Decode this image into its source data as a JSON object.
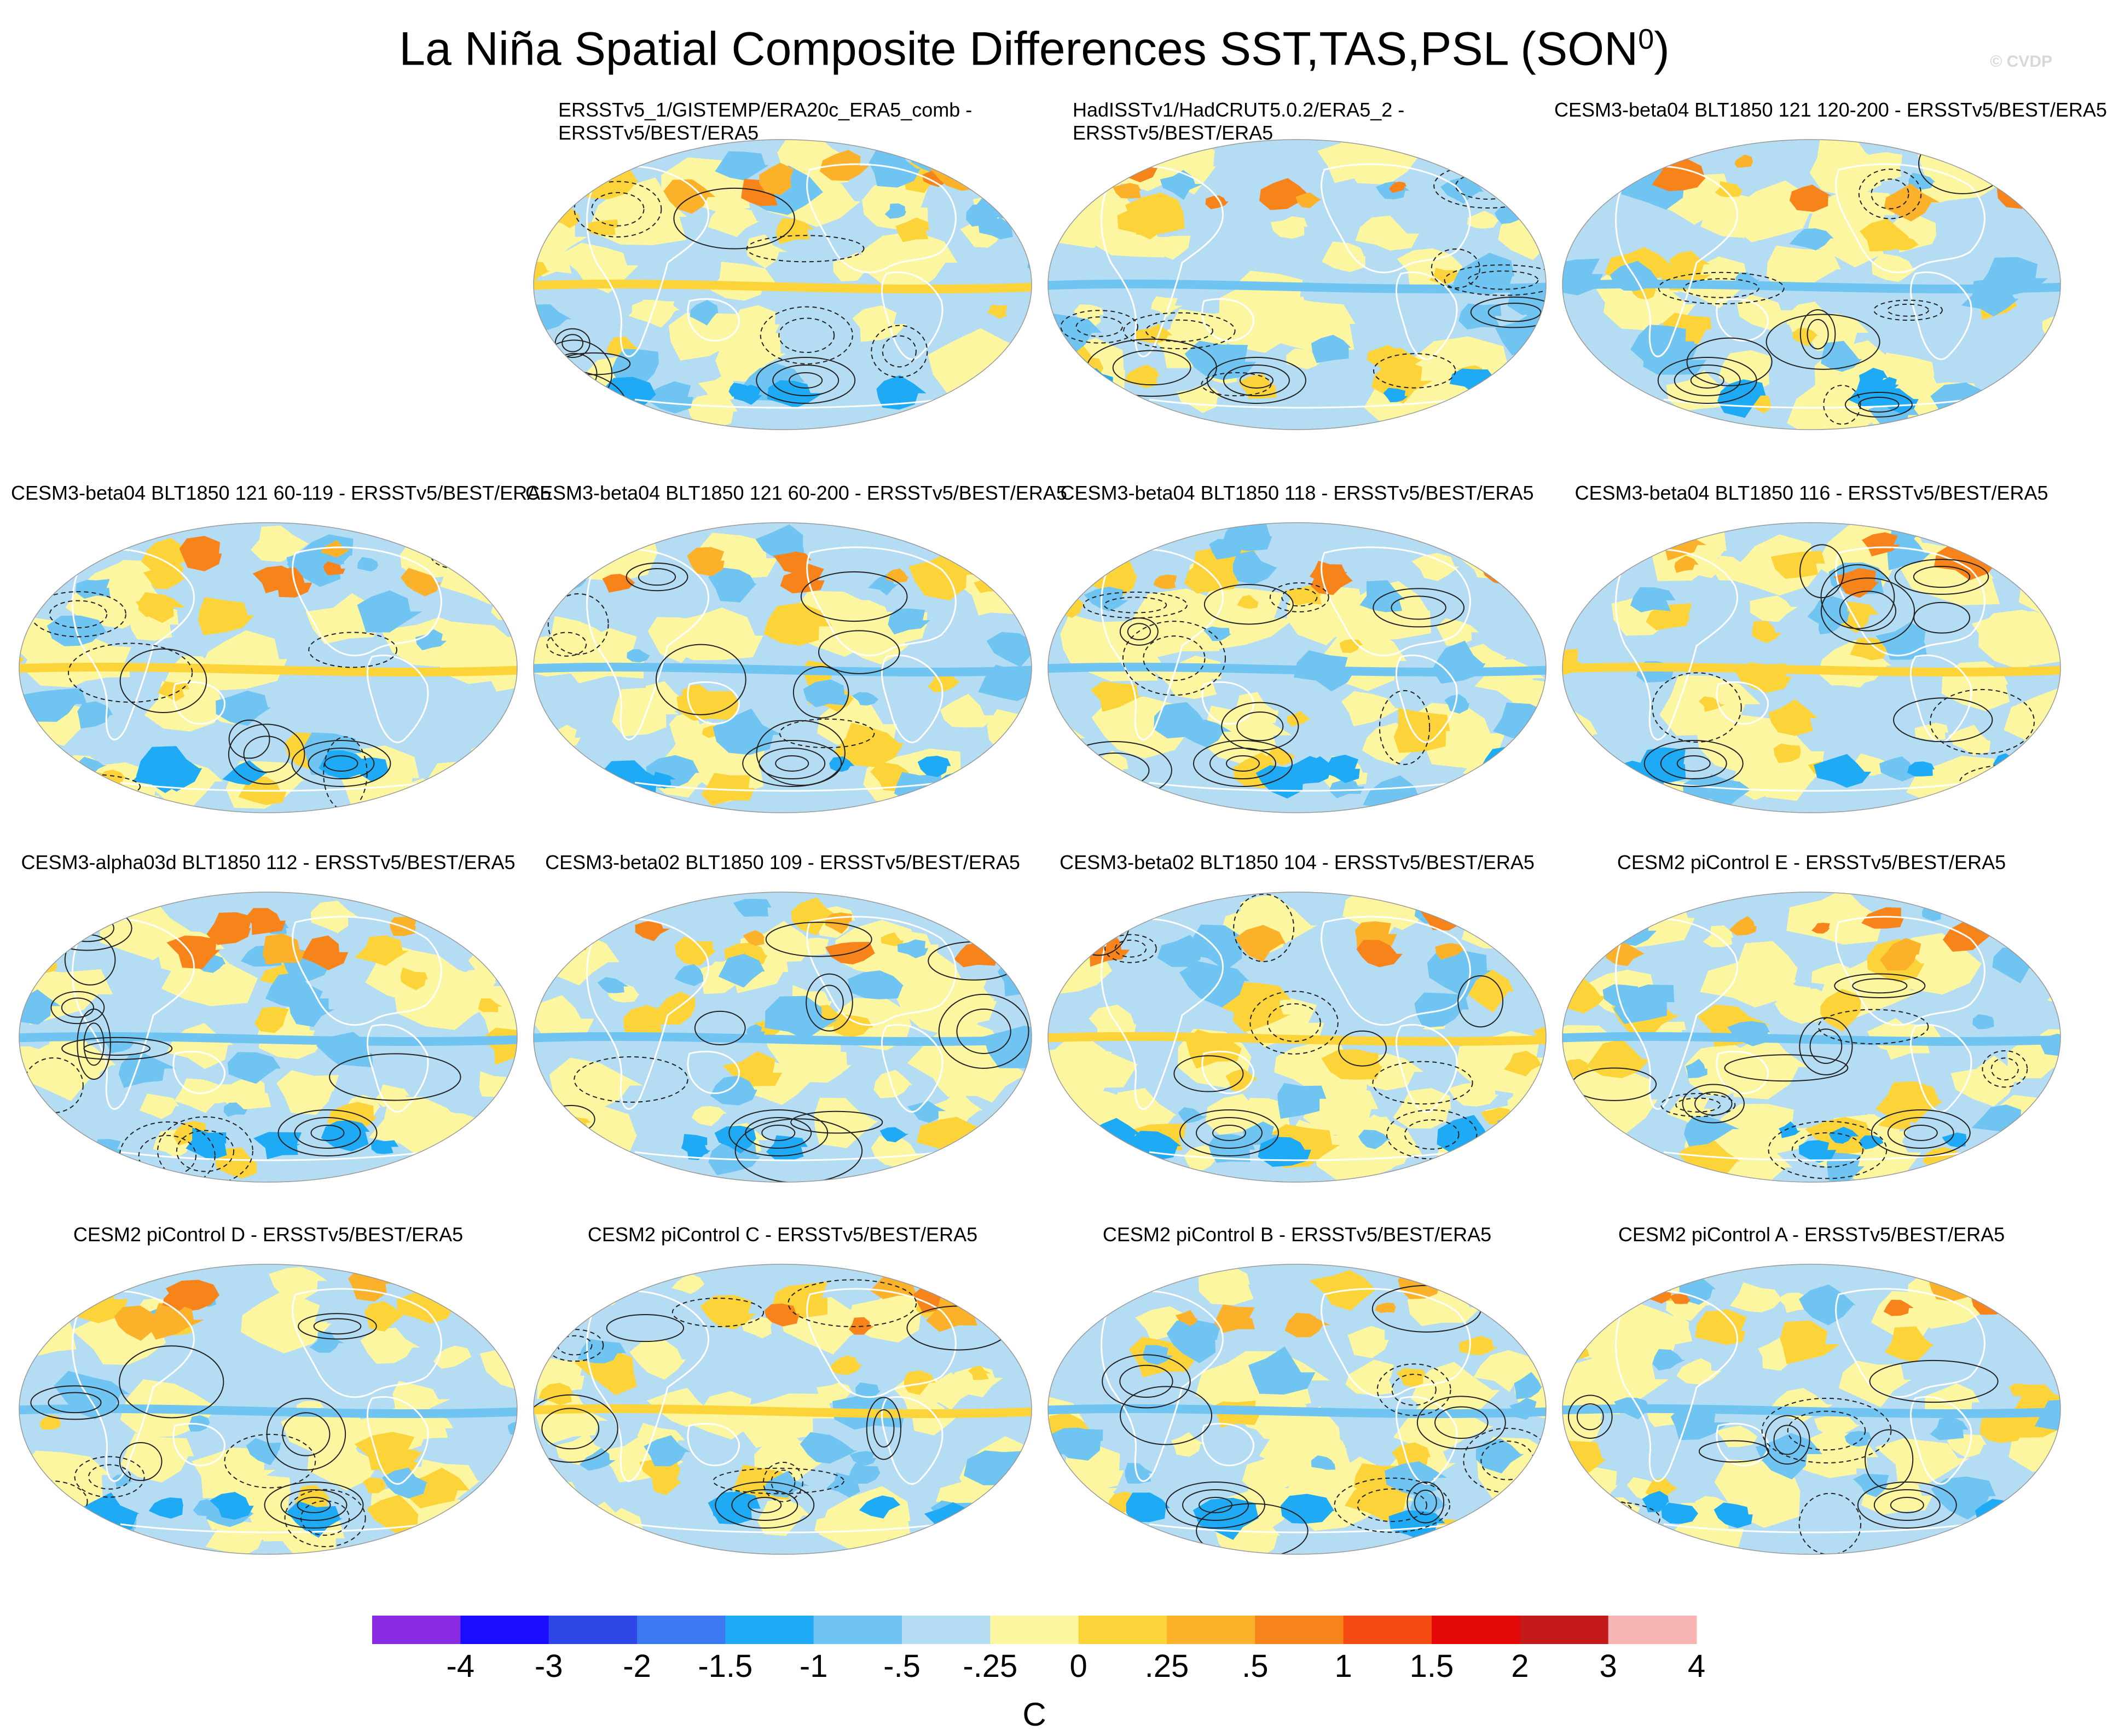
{
  "figure": {
    "title": "La Niña Spatial Composite Differences SST,TAS,PSL (SON",
    "title_sup": "0",
    "title_close": ")",
    "watermark": "© CVDP",
    "units": "C"
  },
  "chart_data": {
    "type": "map-grid",
    "projection": "Robinson (global, Pacific-centered)",
    "variables": [
      "SST",
      "TAS",
      "PSL"
    ],
    "season": "SON",
    "shading": "SST/TAS composite difference (C)",
    "contours": "PSL composite difference (solid positive, dashed negative)",
    "panels": [
      {
        "title": "ERSSTv5_1/GISTEMP/ERA20c_ERA5_comb - ERSSTv5/BEST/ERA5",
        "line1": "ERSSTv5_1/GISTEMP/ERA20c_ERA5_comb -",
        "line2": "ERSSTv5/BEST/ERA5"
      },
      {
        "title": "HadISSTv1/HadCRUT5.0.2/ERA5_2 - ERSSTv5/BEST/ERA5",
        "line1": "HadISSTv1/HadCRUT5.0.2/ERA5_2 -",
        "line2": "ERSSTv5/BEST/ERA5"
      },
      {
        "title": "CESM3-beta04 BLT1850 121 120-200 - ERSSTv5/BEST/ERA5"
      },
      {
        "title": "CESM3-beta04 BLT1850 121 60-119 - ERSSTv5/BEST/ERA5"
      },
      {
        "title": "CESM3-beta04 BLT1850 121 60-200 - ERSSTv5/BEST/ERA5"
      },
      {
        "title": "CESM3-beta04 BLT1850 118 - ERSSTv5/BEST/ERA5"
      },
      {
        "title": "CESM3-beta04 BLT1850 116 - ERSSTv5/BEST/ERA5"
      },
      {
        "title": "CESM3-alpha03d BLT1850 112 - ERSSTv5/BEST/ERA5"
      },
      {
        "title": "CESM3-beta02 BLT1850 109 - ERSSTv5/BEST/ERA5"
      },
      {
        "title": "CESM3-beta02 BLT1850 104 - ERSSTv5/BEST/ERA5"
      },
      {
        "title": "CESM2 piControl E - ERSSTv5/BEST/ERA5"
      },
      {
        "title": "CESM2 piControl D - ERSSTv5/BEST/ERA5"
      },
      {
        "title": "CESM2 piControl C - ERSSTv5/BEST/ERA5"
      },
      {
        "title": "CESM2 piControl B - ERSSTv5/BEST/ERA5"
      },
      {
        "title": "CESM2 piControl A - ERSSTv5/BEST/ERA5"
      }
    ],
    "colorbar": {
      "labels": [
        "-4",
        "-3",
        "-2",
        "-1.5",
        "-1",
        "-.5",
        "-.25",
        "0",
        ".25",
        ".5",
        "1",
        "1.5",
        "2",
        "3",
        "4"
      ],
      "levels": [
        -4,
        -3,
        -2,
        -1.5,
        -1,
        -0.5,
        -0.25,
        0,
        0.25,
        0.5,
        1,
        1.5,
        2,
        3,
        4
      ],
      "colors": [
        "#8a2be2",
        "#1a0dff",
        "#2f46e6",
        "#3c79f0",
        "#1faaf5",
        "#70c4f2",
        "#b4dcf2",
        "#fdf6a0",
        "#fcd43a",
        "#fbb22a",
        "#f7841a",
        "#f44a12",
        "#e40808",
        "#c41a1a",
        "#f8b4b4"
      ]
    }
  },
  "colors": {
    "ocean_base": "#b4dcf2",
    "land_outline": "#ffffff",
    "contour": "#222222"
  }
}
